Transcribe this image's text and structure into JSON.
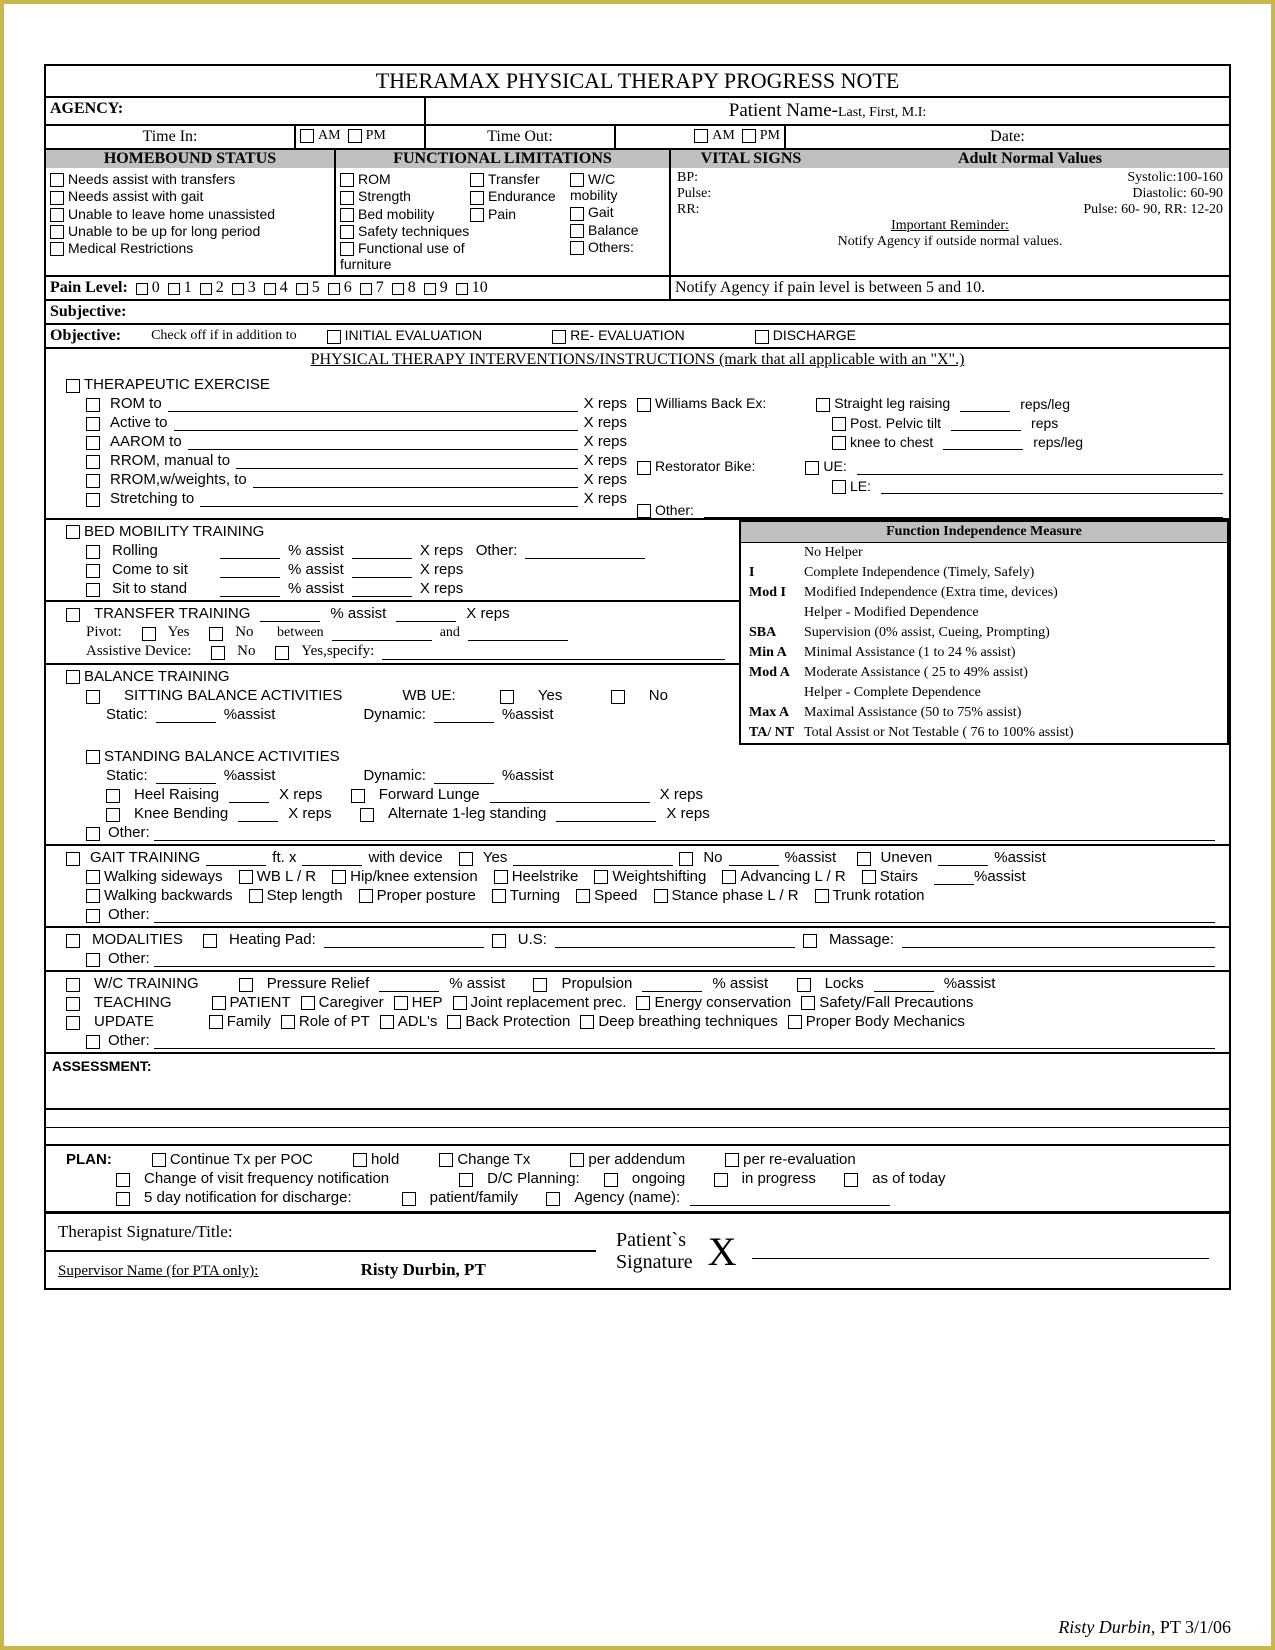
{
  "title": "THERAMAX PHYSICAL THERAPY PROGRESS NOTE",
  "hdr": {
    "agency": "AGENCY:",
    "patient": "Patient Name-",
    "patient_sub": "Last, First, M.I:",
    "timein": "Time In:",
    "am": "AM",
    "pm": "PM",
    "timeout": "Time Out:",
    "date": "Date:"
  },
  "cols": {
    "hb": "HOMEBOUND STATUS",
    "fl": "FUNCTIONAL LIMITATIONS",
    "vs": "VITAL SIGNS",
    "anv": "Adult Normal Values"
  },
  "hb": [
    "Needs assist with transfers",
    "Needs assist with gait",
    "Unable to leave home unassisted",
    "Unable to be up for long period",
    "Medical Restrictions"
  ],
  "fl": {
    "c1": [
      "ROM",
      "Strength",
      "Bed mobility",
      "Safety techniques",
      "Functional use of furniture"
    ],
    "c2": [
      "Transfer",
      "Endurance",
      "Pain"
    ],
    "c3": [
      "W/C mobility",
      "Gait",
      "Balance",
      "Others:"
    ]
  },
  "vs": {
    "bp": "BP:",
    "bp_v": "Systolic:100-160",
    "pulse": "Pulse:",
    "pulse_v": "Diastolic: 60-90",
    "rr": "RR:",
    "rr_v": "Pulse: 60- 90, RR: 12-20",
    "rem": "Important Reminder:",
    "notify": "Notify Agency if outside normal values."
  },
  "pain": {
    "label": "Pain Level:",
    "levels": [
      "0",
      "1",
      "2",
      "3",
      "4",
      "5",
      "6",
      "7",
      "8",
      "9",
      "10"
    ],
    "note": "Notify Agency if pain level is between 5 and 10."
  },
  "subj": "Subjective:",
  "obj": {
    "label": "Objective:",
    "sub": "Check off if in addition to",
    "o1": "INITIAL EVALUATION",
    "o2": "RE- EVALUATION",
    "o3": "DISCHARGE"
  },
  "int_title": "PHYSICAL THERAPY INTERVENTIONS/INSTRUCTIONS (mark that all applicable with an \"X\".)",
  "te": {
    "title": "THERAPEUTIC EXERCISE",
    "items": [
      "ROM to",
      "Active to",
      "AAROM to",
      "RROM, manual to",
      "RROM,w/weights, to",
      "Stretching to"
    ],
    "xreps": "X reps",
    "wbe": "Williams Back Ex:",
    "slr": "Straight leg raising",
    "ppt": "Post. Pelvic tilt",
    "ktc": "knee to chest",
    "rpl": "reps/leg",
    "reps": "reps",
    "rb": "Restorator Bike:",
    "ue": "UE:",
    "le": "LE:",
    "other": "Other:"
  },
  "bm": {
    "title": "BED MOBILITY TRAINING",
    "r": [
      "Rolling",
      "Come to sit",
      "Sit to stand"
    ],
    "pa": "% assist",
    "xr": "X reps",
    "other": "Other:"
  },
  "tt": {
    "title": "TRANSFER TRAINING",
    "pivot": "Pivot:",
    "yes": "Yes",
    "no": "No",
    "between": "between",
    "and": "and",
    "ad": "Assistive Device:",
    "ys": "Yes,specify:"
  },
  "bt": {
    "title": "BALANCE TRAINING",
    "sba": "SITTING BALANCE ACTIVITIES",
    "wbue": "WB UE:",
    "static": "Static:",
    "dynamic": "Dynamic:",
    "pa": "%assist",
    "stba": "STANDING  BALANCE ACTIVITIES",
    "hr": "Heel Raising",
    "kb": "Knee Bending",
    "fl": "Forward Lunge",
    "a1": "Alternate 1-leg standing",
    "xr": "X  reps",
    "other": "Other:"
  },
  "gt": {
    "title": "GAIT TRAINING",
    "ftx": "ft. x",
    "wd": "with device",
    "yes": "Yes",
    "no": "No",
    "pa": "%assist",
    "uneven": "Uneven",
    "r1": [
      "Walking sideways",
      "WB L / R",
      "Hip/knee extension",
      "Heelstrike",
      "Weightshifting",
      "Advancing L / R",
      "Stairs"
    ],
    "r2": [
      "Walking backwards",
      "Step length",
      "Proper posture",
      "Turning",
      "Speed",
      "Stance phase L / R",
      "Trunk rotation"
    ],
    "other": "Other:"
  },
  "mod": {
    "title": "MODALITIES",
    "hp": "Heating Pad:",
    "us": "U.S:",
    "mas": "Massage:",
    "other": "Other:"
  },
  "wc": {
    "title": "W/C TRAINING",
    "pr": "Pressure Relief",
    "pa": "% assist",
    "prop": "Propulsion",
    "locks": "Locks"
  },
  "teach": {
    "title": "TEACHING",
    "i": [
      "PATIENT",
      "Caregiver",
      "HEP",
      "Joint replacement prec.",
      "Energy conservation",
      "Safety/Fall Precautions"
    ]
  },
  "upd": {
    "title": "UPDATE",
    "i": [
      "Family",
      "Role of PT",
      "ADL's",
      "Back Protection",
      "Deep breathing techniques",
      "Proper Body Mechanics"
    ],
    "other": "Other:"
  },
  "assess": "ASSESSMENT:",
  "plan": {
    "title": "PLAN:",
    "r1": [
      "Continue Tx per POC",
      "hold",
      "Change Tx",
      "per addendum",
      "per re-evaluation"
    ],
    "r2a": "Change of visit  frequency notification",
    "r2b": "D/C  Planning:",
    "r2c": "ongoing",
    "r2d": "in progress",
    "r2e": "as of today",
    "r3a": "5 day notification for discharge:",
    "r3b": "patient/family",
    "r3c": "Agency (name):"
  },
  "sig": {
    "tst": "Therapist Signature/Title:",
    "sup": "Supervisor Name (for PTA only):",
    "supn": "Risty Durbin, PT",
    "ps": "Patient`s",
    "sg": "Signature",
    "x": "X"
  },
  "fim": {
    "title": "Function Independence Measure",
    "rows": [
      [
        "",
        "No Helper"
      ],
      [
        "I",
        "Complete Independence (Timely, Safely)"
      ],
      [
        "Mod I",
        "Modified Independence (Extra time, devices)"
      ],
      [
        "",
        "Helper - Modified Dependence"
      ],
      [
        "SBA",
        "Supervision (0% assist, Cueing, Prompting)"
      ],
      [
        "Min A",
        "Minimal Assistance (1 to 24 % assist)"
      ],
      [
        "Mod A",
        "Moderate Assistance ( 25 to 49% assist)"
      ],
      [
        "",
        "Helper - Complete Dependence"
      ],
      [
        "Max A",
        "Maximal Assistance (50 to 75% assist)"
      ],
      [
        "TA/ NT",
        "Total Assist or Not Testable ( 76 to 100% assist)"
      ]
    ]
  },
  "footer": {
    "name": "Risty Durbin",
    "suf": ", PT 3/1/06"
  }
}
